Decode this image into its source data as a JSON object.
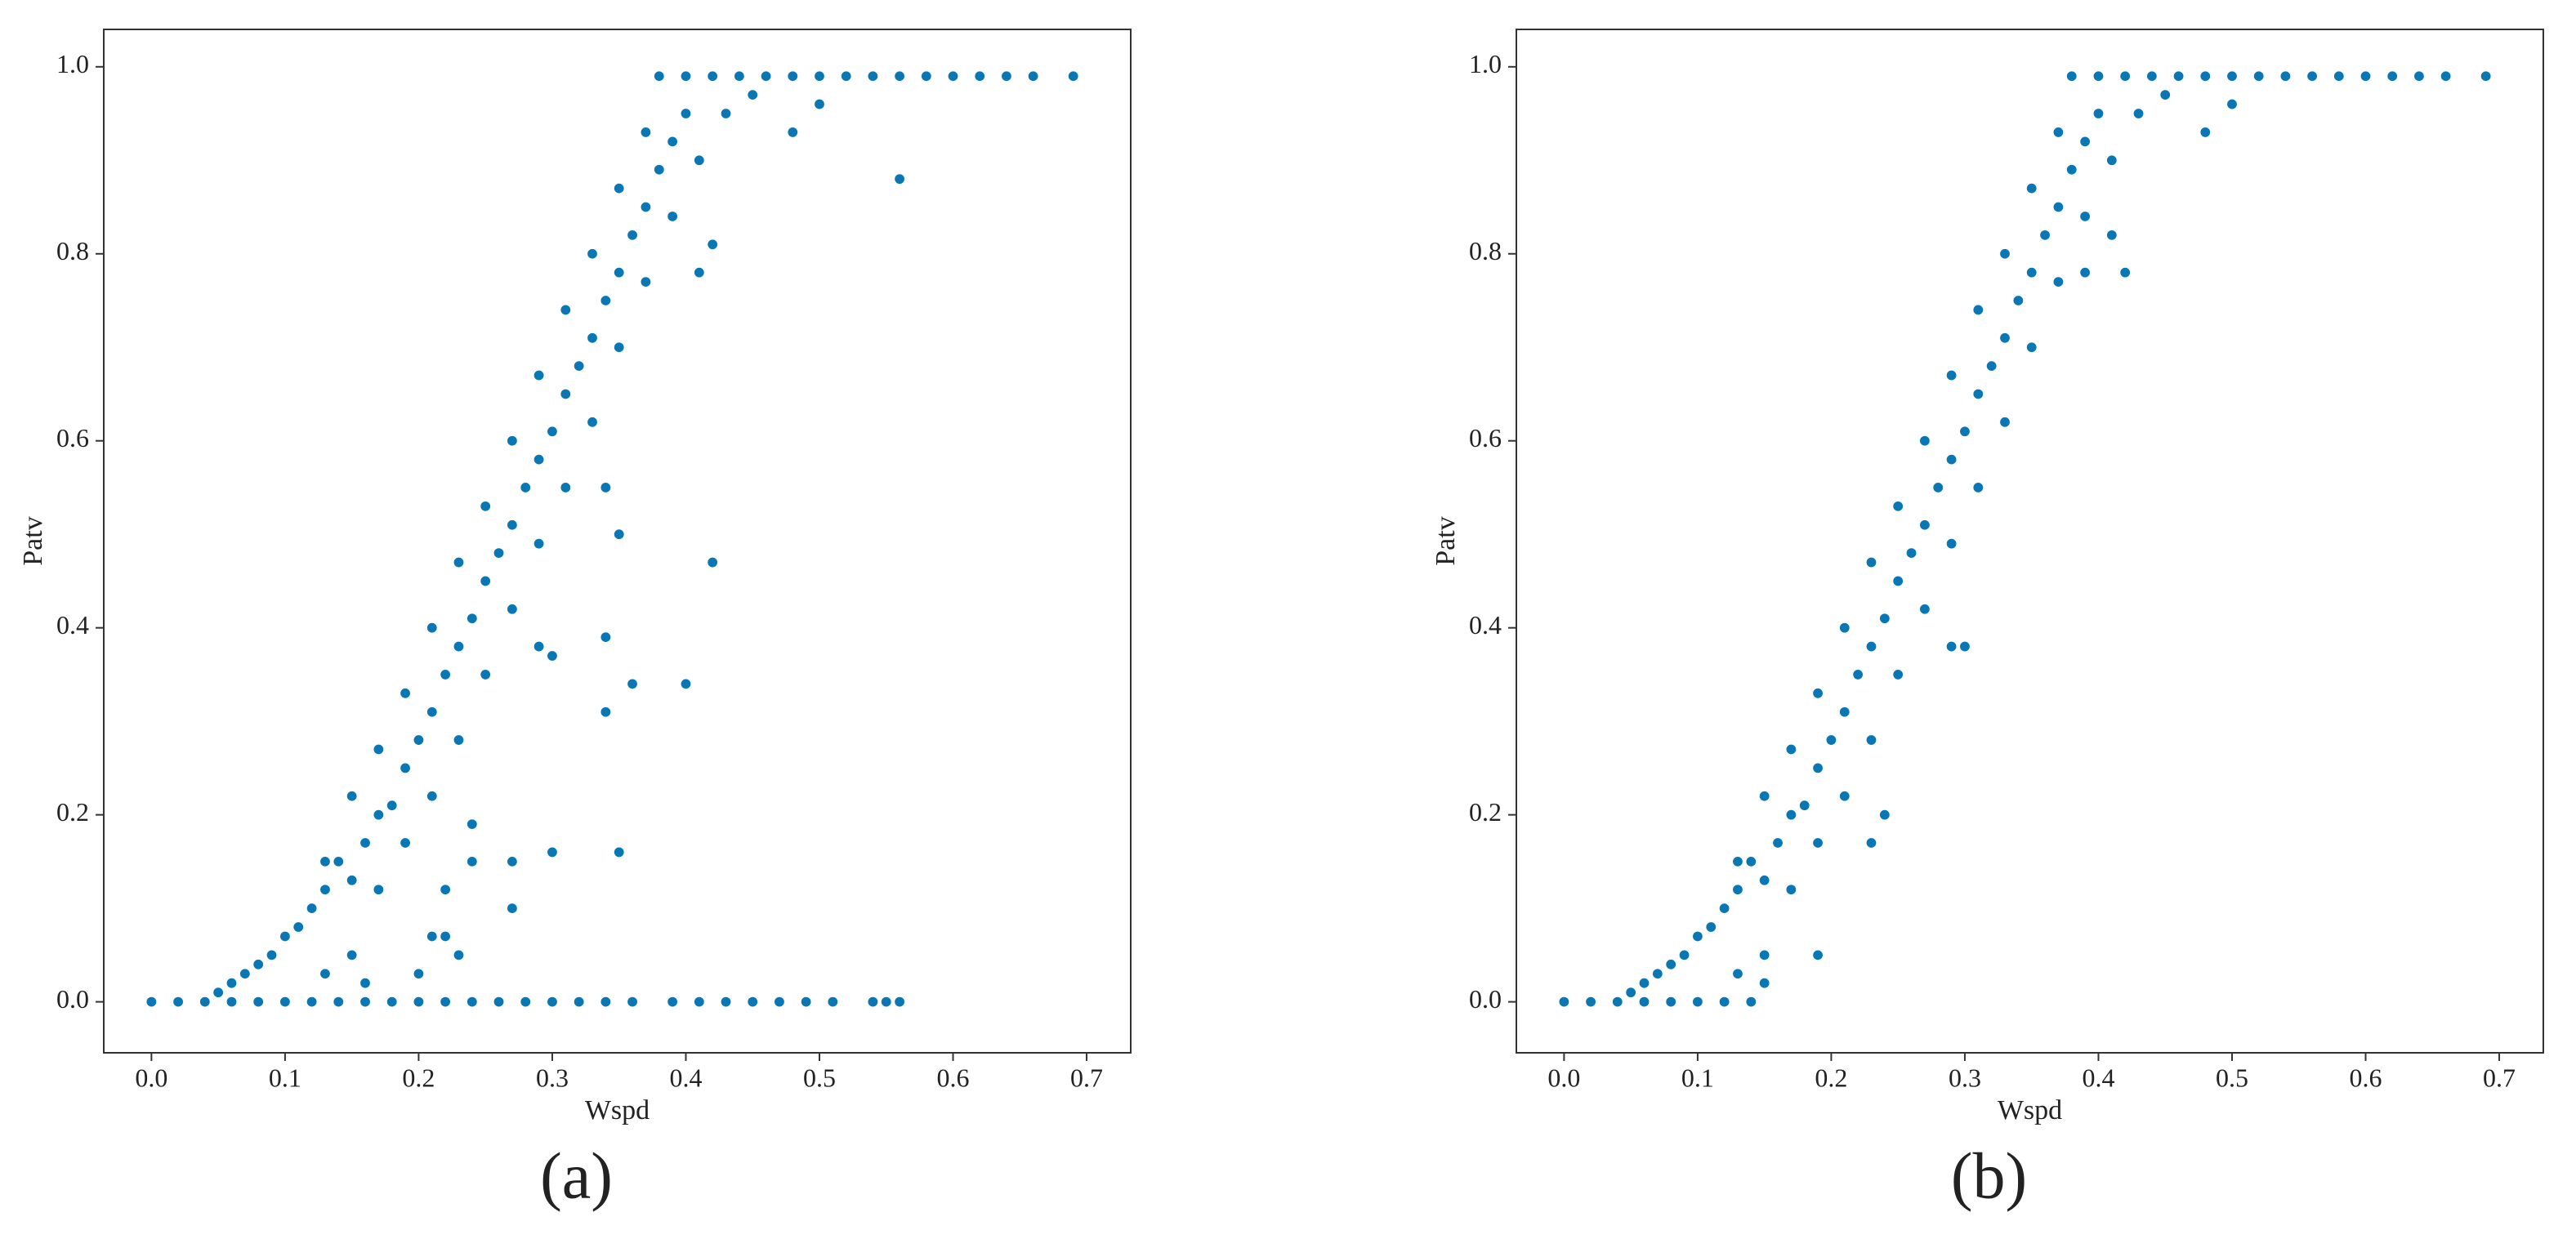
{
  "chart_data": [
    {
      "type": "scatter",
      "caption": "(a)",
      "xlabel": "Wspd",
      "ylabel": "Patv",
      "color": "#0a77b5",
      "xlim": [
        -0.0357,
        0.733
      ],
      "ylim": [
        -0.0545,
        1.04
      ],
      "xticks": [
        {
          "value": 0,
          "label": "0.0"
        },
        0.1,
        0.2,
        0.3,
        0.4,
        0.5,
        0.6,
        0.7
      ],
      "yticks": [
        {
          "value": 0,
          "label": "0.0"
        },
        0.2,
        0.4,
        0.6,
        0.8,
        {
          "value": 1,
          "label": "1.0"
        }
      ],
      "x": [
        0,
        0.02,
        0.04,
        0.06,
        0.08,
        0.1,
        0.12,
        0.14,
        0.16,
        0.18,
        0.2,
        0.22,
        0.24,
        0.26,
        0.28,
        0.3,
        0.32,
        0.34,
        0.36,
        0.39,
        0.41,
        0.43,
        0.45,
        0.47,
        0.49,
        0.51,
        0.54,
        0.55,
        0.56,
        0.05,
        0.06,
        0.07,
        0.08,
        0.09,
        0.1,
        0.11,
        0.12,
        0.13,
        0.14,
        0.15,
        0.13,
        0.16,
        0.15,
        0.16,
        0.17,
        0.18,
        0.19,
        0.2,
        0.21,
        0.22,
        0.23,
        0.24,
        0.25,
        0.26,
        0.27,
        0.28,
        0.29,
        0.3,
        0.31,
        0.32,
        0.33,
        0.34,
        0.35,
        0.36,
        0.37,
        0.38,
        0.39,
        0.4,
        0.17,
        0.19,
        0.21,
        0.23,
        0.25,
        0.27,
        0.29,
        0.31,
        0.33,
        0.35,
        0.37,
        0.39,
        0.41,
        0.43,
        0.13,
        0.15,
        0.17,
        0.19,
        0.21,
        0.23,
        0.25,
        0.27,
        0.29,
        0.31,
        0.33,
        0.35,
        0.37,
        0.38,
        0.4,
        0.42,
        0.44,
        0.46,
        0.48,
        0.5,
        0.52,
        0.54,
        0.56,
        0.58,
        0.6,
        0.62,
        0.64,
        0.66,
        0.69,
        0.45,
        0.48,
        0.5,
        0.56,
        0.42,
        0.35,
        0.34,
        0.34,
        0.36,
        0.4,
        0.34,
        0.35,
        0.3,
        0.27,
        0.27,
        0.22,
        0.24,
        0.23,
        0.22,
        0.29,
        0.3,
        0.42,
        0.41,
        0.24,
        0.2,
        0.21
      ],
      "values": [
        0,
        0,
        0,
        0,
        0,
        0,
        0,
        0,
        0,
        0,
        0,
        0,
        0,
        0,
        0,
        0,
        0,
        0,
        0,
        0,
        0,
        0,
        0,
        0,
        0,
        0,
        0,
        0,
        0,
        0.01,
        0.02,
        0.03,
        0.04,
        0.05,
        0.07,
        0.08,
        0.1,
        0.12,
        0.15,
        0.05,
        0.03,
        0.02,
        0.13,
        0.17,
        0.2,
        0.21,
        0.25,
        0.28,
        0.31,
        0.35,
        0.38,
        0.41,
        0.45,
        0.48,
        0.51,
        0.55,
        0.58,
        0.61,
        0.65,
        0.68,
        0.71,
        0.75,
        0.78,
        0.82,
        0.85,
        0.89,
        0.92,
        0.95,
        0.12,
        0.17,
        0.22,
        0.28,
        0.35,
        0.42,
        0.49,
        0.55,
        0.62,
        0.7,
        0.77,
        0.84,
        0.9,
        0.95,
        0.15,
        0.22,
        0.27,
        0.33,
        0.4,
        0.47,
        0.53,
        0.6,
        0.67,
        0.74,
        0.8,
        0.87,
        0.93,
        0.99,
        0.99,
        0.99,
        0.99,
        0.99,
        0.99,
        0.99,
        0.99,
        0.99,
        0.99,
        0.99,
        0.99,
        0.99,
        0.99,
        0.99,
        0.99,
        0.97,
        0.93,
        0.96,
        0.88,
        0.47,
        0.5,
        0.55,
        0.39,
        0.34,
        0.34,
        0.31,
        0.16,
        0.16,
        0.15,
        0.1,
        0.12,
        0.15,
        0.05,
        0.07,
        0.38,
        0.37,
        0.81,
        0.78,
        0.19,
        0.03,
        0.07
      ]
    },
    {
      "type": "scatter",
      "caption": "(b)",
      "xlabel": "Wspd",
      "ylabel": "Patv",
      "color": "#0a77b5",
      "xlim": [
        -0.0357,
        0.733
      ],
      "ylim": [
        -0.0545,
        1.04
      ],
      "xticks": [
        {
          "value": 0,
          "label": "0.0"
        },
        0.1,
        0.2,
        0.3,
        0.4,
        0.5,
        0.6,
        0.7
      ],
      "yticks": [
        {
          "value": 0,
          "label": "0.0"
        },
        0.2,
        0.4,
        0.6,
        0.8,
        {
          "value": 1,
          "label": "1.0"
        }
      ],
      "x": [
        0,
        0.02,
        0.04,
        0.06,
        0.08,
        0.1,
        0.12,
        0.14,
        0.05,
        0.06,
        0.07,
        0.08,
        0.09,
        0.1,
        0.11,
        0.12,
        0.13,
        0.14,
        0.15,
        0.13,
        0.15,
        0.15,
        0.16,
        0.17,
        0.18,
        0.19,
        0.2,
        0.21,
        0.22,
        0.23,
        0.24,
        0.25,
        0.26,
        0.27,
        0.28,
        0.29,
        0.3,
        0.31,
        0.32,
        0.33,
        0.34,
        0.35,
        0.36,
        0.37,
        0.38,
        0.39,
        0.4,
        0.17,
        0.19,
        0.21,
        0.23,
        0.25,
        0.27,
        0.29,
        0.31,
        0.33,
        0.35,
        0.37,
        0.39,
        0.41,
        0.43,
        0.13,
        0.15,
        0.17,
        0.19,
        0.21,
        0.23,
        0.25,
        0.27,
        0.29,
        0.31,
        0.33,
        0.35,
        0.37,
        0.38,
        0.4,
        0.42,
        0.44,
        0.46,
        0.48,
        0.5,
        0.52,
        0.54,
        0.56,
        0.58,
        0.6,
        0.62,
        0.64,
        0.66,
        0.69,
        0.45,
        0.48,
        0.5,
        0.19,
        0.23,
        0.24,
        0.29,
        0.3,
        0.42,
        0.41,
        0.39
      ],
      "values": [
        0,
        0,
        0,
        0,
        0,
        0,
        0,
        0,
        0.01,
        0.02,
        0.03,
        0.04,
        0.05,
        0.07,
        0.08,
        0.1,
        0.12,
        0.15,
        0.05,
        0.03,
        0.02,
        0.13,
        0.17,
        0.2,
        0.21,
        0.25,
        0.28,
        0.31,
        0.35,
        0.38,
        0.41,
        0.45,
        0.48,
        0.51,
        0.55,
        0.58,
        0.61,
        0.65,
        0.68,
        0.71,
        0.75,
        0.78,
        0.82,
        0.85,
        0.89,
        0.92,
        0.95,
        0.12,
        0.17,
        0.22,
        0.28,
        0.35,
        0.42,
        0.49,
        0.55,
        0.62,
        0.7,
        0.77,
        0.84,
        0.9,
        0.95,
        0.15,
        0.22,
        0.27,
        0.33,
        0.4,
        0.47,
        0.53,
        0.6,
        0.67,
        0.74,
        0.8,
        0.87,
        0.93,
        0.99,
        0.99,
        0.99,
        0.99,
        0.99,
        0.99,
        0.99,
        0.99,
        0.99,
        0.99,
        0.99,
        0.99,
        0.99,
        0.99,
        0.99,
        0.99,
        0.97,
        0.93,
        0.96,
        0.05,
        0.17,
        0.2,
        0.38,
        0.38,
        0.78,
        0.82,
        0.78
      ]
    }
  ]
}
